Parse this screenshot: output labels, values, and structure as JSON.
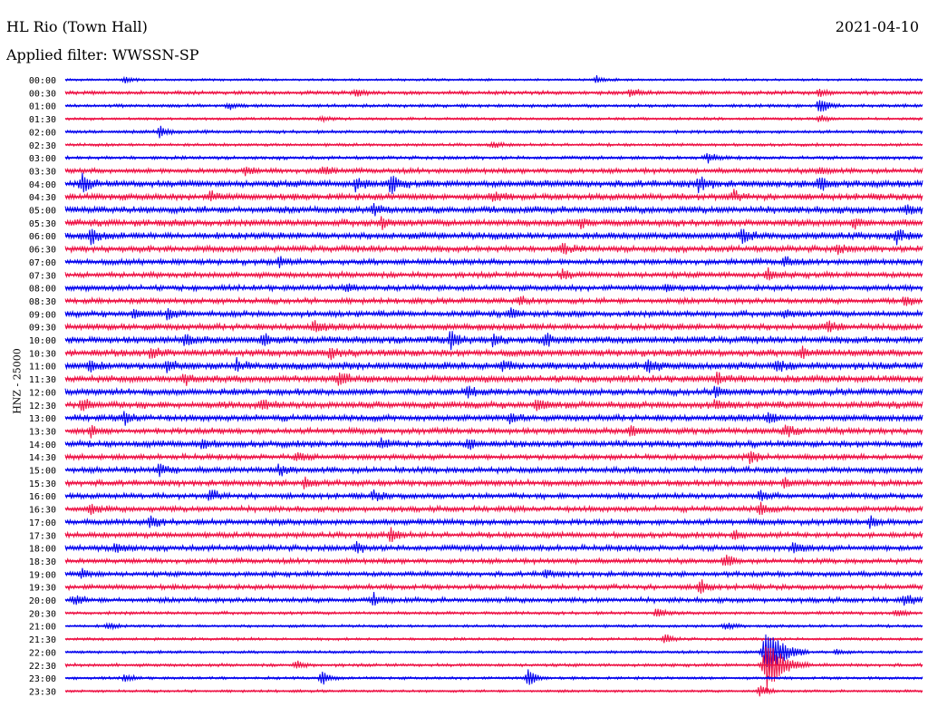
{
  "header": {
    "station": "HL Rio (Town Hall)",
    "date": "2021-04-10",
    "filter": "Applied filter: WWSSN-SP",
    "channel_label": "HNZ - 25000"
  },
  "colors": {
    "trace_a": "#0000ee",
    "trace_b": "#ee1144",
    "text": "#000000"
  },
  "chart_data": {
    "type": "line",
    "subtype": "helicorder",
    "title": "HL Rio (Town Hall)",
    "date": "2021-04-10",
    "filter": "WWSSN-SP",
    "ylabel": "HNZ - 25000",
    "row_minutes": 30,
    "rows": [
      {
        "label": "00:00",
        "color": "#0000ee",
        "noise": 1.0,
        "events": [
          {
            "t": 0.62,
            "a": 4
          },
          {
            "t": 0.07,
            "a": 3
          }
        ]
      },
      {
        "label": "00:30",
        "color": "#ee1144",
        "noise": 1.6,
        "events": [
          {
            "t": 0.34,
            "a": 5
          },
          {
            "t": 0.66,
            "a": 5
          },
          {
            "t": 0.88,
            "a": 4
          }
        ]
      },
      {
        "label": "01:00",
        "color": "#0000ee",
        "noise": 1.4,
        "events": [
          {
            "t": 0.19,
            "a": 4
          },
          {
            "t": 0.88,
            "a": 9
          }
        ]
      },
      {
        "label": "01:30",
        "color": "#ee1144",
        "noise": 1.2,
        "events": [
          {
            "t": 0.3,
            "a": 3
          },
          {
            "t": 0.88,
            "a": 4
          }
        ]
      },
      {
        "label": "02:00",
        "color": "#0000ee",
        "noise": 1.4,
        "events": [
          {
            "t": 0.11,
            "a": 6
          }
        ]
      },
      {
        "label": "02:30",
        "color": "#ee1144",
        "noise": 1.3,
        "events": [
          {
            "t": 0.5,
            "a": 3
          }
        ]
      },
      {
        "label": "03:00",
        "color": "#0000ee",
        "noise": 1.5,
        "events": [
          {
            "t": 0.75,
            "a": 6
          }
        ]
      },
      {
        "label": "03:30",
        "color": "#ee1144",
        "noise": 2.2,
        "events": [
          {
            "t": 0.21,
            "a": 4
          },
          {
            "t": 0.3,
            "a": 5
          },
          {
            "t": 0.88,
            "a": 4
          }
        ]
      },
      {
        "label": "04:00",
        "color": "#0000ee",
        "noise": 3.0,
        "events": [
          {
            "t": 0.02,
            "a": 9
          },
          {
            "t": 0.34,
            "a": 7
          },
          {
            "t": 0.38,
            "a": 9
          },
          {
            "t": 0.74,
            "a": 8
          },
          {
            "t": 0.88,
            "a": 9
          }
        ]
      },
      {
        "label": "04:30",
        "color": "#ee1144",
        "noise": 2.8,
        "events": [
          {
            "t": 0.17,
            "a": 5
          },
          {
            "t": 0.5,
            "a": 5
          },
          {
            "t": 0.78,
            "a": 5
          }
        ]
      },
      {
        "label": "05:00",
        "color": "#0000ee",
        "noise": 3.0,
        "events": [
          {
            "t": 0.36,
            "a": 6
          },
          {
            "t": 0.98,
            "a": 5
          }
        ]
      },
      {
        "label": "05:30",
        "color": "#ee1144",
        "noise": 3.0,
        "events": [
          {
            "t": 0.37,
            "a": 6
          },
          {
            "t": 0.6,
            "a": 5
          },
          {
            "t": 0.92,
            "a": 5
          }
        ]
      },
      {
        "label": "06:00",
        "color": "#0000ee",
        "noise": 3.0,
        "events": [
          {
            "t": 0.03,
            "a": 8
          },
          {
            "t": 0.79,
            "a": 7
          },
          {
            "t": 0.97,
            "a": 7
          }
        ]
      },
      {
        "label": "06:30",
        "color": "#ee1144",
        "noise": 2.7,
        "events": [
          {
            "t": 0.58,
            "a": 6
          },
          {
            "t": 0.9,
            "a": 5
          }
        ]
      },
      {
        "label": "07:00",
        "color": "#0000ee",
        "noise": 2.5,
        "events": [
          {
            "t": 0.25,
            "a": 4
          },
          {
            "t": 0.84,
            "a": 5
          }
        ]
      },
      {
        "label": "07:30",
        "color": "#ee1144",
        "noise": 2.5,
        "events": [
          {
            "t": 0.58,
            "a": 5
          },
          {
            "t": 0.82,
            "a": 6
          }
        ]
      },
      {
        "label": "08:00",
        "color": "#0000ee",
        "noise": 2.4,
        "events": [
          {
            "t": 0.33,
            "a": 4
          },
          {
            "t": 0.7,
            "a": 4
          }
        ]
      },
      {
        "label": "08:30",
        "color": "#ee1144",
        "noise": 2.4,
        "events": [
          {
            "t": 0.53,
            "a": 5
          },
          {
            "t": 0.98,
            "a": 5
          }
        ]
      },
      {
        "label": "09:00",
        "color": "#0000ee",
        "noise": 2.6,
        "events": [
          {
            "t": 0.08,
            "a": 5
          },
          {
            "t": 0.12,
            "a": 5
          },
          {
            "t": 0.52,
            "a": 5
          },
          {
            "t": 0.84,
            "a": 5
          }
        ]
      },
      {
        "label": "09:30",
        "color": "#ee1144",
        "noise": 2.8,
        "events": [
          {
            "t": 0.29,
            "a": 6
          },
          {
            "t": 0.89,
            "a": 6
          }
        ]
      },
      {
        "label": "10:00",
        "color": "#0000ee",
        "noise": 3.1,
        "events": [
          {
            "t": 0.14,
            "a": 6
          },
          {
            "t": 0.23,
            "a": 5
          },
          {
            "t": 0.45,
            "a": 9
          },
          {
            "t": 0.5,
            "a": 6
          },
          {
            "t": 0.56,
            "a": 6
          }
        ]
      },
      {
        "label": "10:30",
        "color": "#ee1144",
        "noise": 3.0,
        "events": [
          {
            "t": 0.1,
            "a": 5
          },
          {
            "t": 0.31,
            "a": 5
          },
          {
            "t": 0.86,
            "a": 5
          }
        ]
      },
      {
        "label": "11:00",
        "color": "#0000ee",
        "noise": 3.2,
        "events": [
          {
            "t": 0.03,
            "a": 6
          },
          {
            "t": 0.12,
            "a": 6
          },
          {
            "t": 0.2,
            "a": 6
          },
          {
            "t": 0.51,
            "a": 6
          },
          {
            "t": 0.68,
            "a": 7
          },
          {
            "t": 0.83,
            "a": 6
          }
        ]
      },
      {
        "label": "11:30",
        "color": "#ee1144",
        "noise": 3.0,
        "events": [
          {
            "t": 0.14,
            "a": 6
          },
          {
            "t": 0.32,
            "a": 7
          },
          {
            "t": 0.76,
            "a": 6
          }
        ]
      },
      {
        "label": "12:00",
        "color": "#0000ee",
        "noise": 2.8,
        "events": [
          {
            "t": 0.47,
            "a": 6
          },
          {
            "t": 0.76,
            "a": 7
          }
        ]
      },
      {
        "label": "12:30",
        "color": "#ee1144",
        "noise": 3.0,
        "events": [
          {
            "t": 0.02,
            "a": 6
          },
          {
            "t": 0.23,
            "a": 5
          },
          {
            "t": 0.55,
            "a": 6
          },
          {
            "t": 0.76,
            "a": 5
          }
        ]
      },
      {
        "label": "13:00",
        "color": "#0000ee",
        "noise": 2.8,
        "events": [
          {
            "t": 0.07,
            "a": 6
          },
          {
            "t": 0.52,
            "a": 5
          },
          {
            "t": 0.82,
            "a": 5
          }
        ]
      },
      {
        "label": "13:30",
        "color": "#ee1144",
        "noise": 2.6,
        "events": [
          {
            "t": 0.03,
            "a": 6
          },
          {
            "t": 0.66,
            "a": 6
          },
          {
            "t": 0.84,
            "a": 7
          }
        ]
      },
      {
        "label": "14:00",
        "color": "#0000ee",
        "noise": 2.8,
        "events": [
          {
            "t": 0.16,
            "a": 5
          },
          {
            "t": 0.37,
            "a": 5
          },
          {
            "t": 0.47,
            "a": 5
          }
        ]
      },
      {
        "label": "14:30",
        "color": "#ee1144",
        "noise": 2.4,
        "events": [
          {
            "t": 0.27,
            "a": 5
          },
          {
            "t": 0.8,
            "a": 6
          }
        ]
      },
      {
        "label": "15:00",
        "color": "#0000ee",
        "noise": 2.6,
        "events": [
          {
            "t": 0.11,
            "a": 6
          },
          {
            "t": 0.25,
            "a": 5
          }
        ]
      },
      {
        "label": "15:30",
        "color": "#ee1144",
        "noise": 2.6,
        "events": [
          {
            "t": 0.28,
            "a": 6
          },
          {
            "t": 0.84,
            "a": 6
          }
        ]
      },
      {
        "label": "16:00",
        "color": "#0000ee",
        "noise": 2.4,
        "events": [
          {
            "t": 0.17,
            "a": 6
          },
          {
            "t": 0.36,
            "a": 5
          },
          {
            "t": 0.81,
            "a": 5
          }
        ]
      },
      {
        "label": "16:30",
        "color": "#ee1144",
        "noise": 2.4,
        "events": [
          {
            "t": 0.03,
            "a": 5
          },
          {
            "t": 0.81,
            "a": 7
          }
        ]
      },
      {
        "label": "17:00",
        "color": "#0000ee",
        "noise": 2.6,
        "events": [
          {
            "t": 0.1,
            "a": 6
          },
          {
            "t": 0.94,
            "a": 6
          }
        ]
      },
      {
        "label": "17:30",
        "color": "#ee1144",
        "noise": 2.4,
        "events": [
          {
            "t": 0.38,
            "a": 7
          },
          {
            "t": 0.78,
            "a": 5
          }
        ]
      },
      {
        "label": "18:00",
        "color": "#0000ee",
        "noise": 2.5,
        "events": [
          {
            "t": 0.06,
            "a": 6
          },
          {
            "t": 0.34,
            "a": 5
          },
          {
            "t": 0.85,
            "a": 5
          }
        ]
      },
      {
        "label": "18:30",
        "color": "#ee1144",
        "noise": 2.2,
        "events": [
          {
            "t": 0.77,
            "a": 7
          }
        ]
      },
      {
        "label": "19:00",
        "color": "#0000ee",
        "noise": 2.2,
        "events": [
          {
            "t": 0.02,
            "a": 5
          },
          {
            "t": 0.56,
            "a": 4
          }
        ]
      },
      {
        "label": "19:30",
        "color": "#ee1144",
        "noise": 2.2,
        "events": [
          {
            "t": 0.74,
            "a": 8
          }
        ]
      },
      {
        "label": "20:00",
        "color": "#0000ee",
        "noise": 2.2,
        "events": [
          {
            "t": 0.01,
            "a": 6
          },
          {
            "t": 0.36,
            "a": 6
          },
          {
            "t": 0.98,
            "a": 6
          }
        ]
      },
      {
        "label": "20:30",
        "color": "#ee1144",
        "noise": 1.4,
        "events": [
          {
            "t": 0.69,
            "a": 5
          },
          {
            "t": 0.97,
            "a": 5
          }
        ]
      },
      {
        "label": "21:00",
        "color": "#0000ee",
        "noise": 1.2,
        "events": [
          {
            "t": 0.05,
            "a": 4
          },
          {
            "t": 0.77,
            "a": 4
          }
        ]
      },
      {
        "label": "21:30",
        "color": "#ee1144",
        "noise": 1.2,
        "events": [
          {
            "t": 0.7,
            "a": 5
          }
        ]
      },
      {
        "label": "22:00",
        "color": "#0000ee",
        "noise": 1.2,
        "events": [
          {
            "t": 0.82,
            "a": 28
          },
          {
            "t": 0.9,
            "a": 3
          }
        ]
      },
      {
        "label": "22:30",
        "color": "#ee1144",
        "noise": 1.4,
        "events": [
          {
            "t": 0.82,
            "a": 30
          },
          {
            "t": 0.27,
            "a": 4
          }
        ]
      },
      {
        "label": "23:00",
        "color": "#0000ee",
        "noise": 1.2,
        "events": [
          {
            "t": 0.3,
            "a": 8
          },
          {
            "t": 0.54,
            "a": 11
          },
          {
            "t": 0.07,
            "a": 4
          }
        ]
      },
      {
        "label": "23:30",
        "color": "#ee1144",
        "noise": 1.1,
        "events": [
          {
            "t": 0.81,
            "a": 7
          }
        ]
      }
    ]
  }
}
